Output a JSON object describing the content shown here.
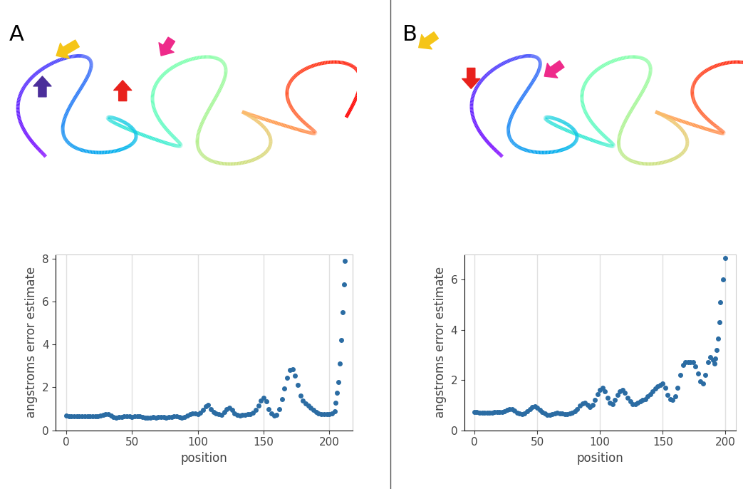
{
  "chart_data": [
    {
      "type": "scatter",
      "title": "A",
      "x_label": "position",
      "y_label": "angstroms error estimate",
      "color": "#2b6ca3",
      "marker": "circle",
      "grid": true,
      "xlim": [
        -8,
        218
      ],
      "xticks": [
        0,
        50,
        100,
        150,
        200
      ],
      "ylim": [
        0,
        8.2
      ],
      "yticks": [
        0,
        2,
        4,
        6,
        8
      ],
      "x": [
        0,
        2,
        4,
        6,
        8,
        10,
        12,
        14,
        16,
        18,
        20,
        22,
        24,
        26,
        28,
        30,
        32,
        34,
        36,
        38,
        40,
        42,
        44,
        46,
        48,
        50,
        52,
        54,
        56,
        58,
        60,
        62,
        64,
        66,
        68,
        70,
        72,
        74,
        76,
        78,
        80,
        82,
        84,
        86,
        88,
        90,
        92,
        94,
        96,
        98,
        100,
        102,
        104,
        106,
        108,
        110,
        112,
        114,
        116,
        118,
        120,
        122,
        124,
        126,
        128,
        130,
        132,
        134,
        136,
        138,
        140,
        142,
        144,
        146,
        148,
        150,
        152,
        154,
        156,
        158,
        160,
        162,
        164,
        166,
        168,
        170,
        172,
        174,
        176,
        178,
        180,
        182,
        184,
        186,
        188,
        190,
        192,
        194,
        196,
        198,
        200,
        202,
        204,
        205,
        206,
        207,
        208,
        209,
        210,
        211,
        212
      ],
      "values": [
        0.68,
        0.67,
        0.66,
        0.66,
        0.65,
        0.65,
        0.64,
        0.64,
        0.65,
        0.65,
        0.64,
        0.65,
        0.66,
        0.68,
        0.72,
        0.75,
        0.74,
        0.68,
        0.62,
        0.6,
        0.61,
        0.63,
        0.65,
        0.66,
        0.64,
        0.63,
        0.65,
        0.66,
        0.64,
        0.62,
        0.6,
        0.59,
        0.6,
        0.61,
        0.6,
        0.62,
        0.63,
        0.62,
        0.6,
        0.61,
        0.62,
        0.64,
        0.66,
        0.62,
        0.6,
        0.63,
        0.7,
        0.75,
        0.8,
        0.78,
        0.76,
        0.82,
        0.95,
        1.12,
        1.18,
        1.0,
        0.85,
        0.78,
        0.74,
        0.72,
        0.85,
        0.98,
        1.05,
        0.95,
        0.8,
        0.72,
        0.7,
        0.71,
        0.73,
        0.74,
        0.76,
        0.82,
        0.95,
        1.15,
        1.4,
        1.52,
        1.35,
        1.0,
        0.78,
        0.7,
        0.72,
        1.0,
        1.45,
        1.95,
        2.45,
        2.8,
        2.85,
        2.55,
        2.1,
        1.6,
        1.4,
        1.25,
        1.15,
        1.05,
        0.95,
        0.85,
        0.8,
        0.76,
        0.74,
        0.75,
        0.76,
        0.78,
        0.9,
        1.3,
        1.75,
        2.25,
        3.1,
        4.2,
        5.5,
        6.8,
        7.9
      ]
    },
    {
      "type": "scatter",
      "title": "B",
      "x_label": "position",
      "y_label": "angstroms error estimate",
      "color": "#2b6ca3",
      "marker": "circle",
      "grid": true,
      "xlim": [
        -8,
        208
      ],
      "xticks": [
        0,
        50,
        100,
        150,
        200
      ],
      "ylim": [
        0,
        7
      ],
      "yticks": [
        0,
        2,
        4,
        6
      ],
      "x": [
        0,
        2,
        4,
        6,
        8,
        10,
        12,
        14,
        16,
        18,
        20,
        22,
        24,
        26,
        28,
        30,
        32,
        34,
        36,
        38,
        40,
        42,
        44,
        46,
        48,
        50,
        52,
        54,
        56,
        58,
        60,
        62,
        64,
        66,
        68,
        70,
        72,
        74,
        76,
        78,
        80,
        82,
        84,
        86,
        88,
        90,
        92,
        94,
        96,
        98,
        100,
        102,
        104,
        106,
        108,
        110,
        112,
        114,
        116,
        118,
        120,
        122,
        124,
        126,
        128,
        130,
        132,
        134,
        136,
        138,
        140,
        142,
        144,
        146,
        148,
        150,
        152,
        154,
        156,
        158,
        160,
        162,
        164,
        166,
        168,
        170,
        172,
        174,
        176,
        178,
        180,
        182,
        184,
        186,
        188,
        190,
        191,
        192,
        193,
        194,
        195,
        196,
        198,
        200
      ],
      "values": [
        0.72,
        0.72,
        0.7,
        0.7,
        0.69,
        0.7,
        0.71,
        0.71,
        0.72,
        0.72,
        0.73,
        0.74,
        0.76,
        0.8,
        0.85,
        0.84,
        0.78,
        0.7,
        0.66,
        0.65,
        0.68,
        0.75,
        0.85,
        0.92,
        0.95,
        0.9,
        0.82,
        0.74,
        0.66,
        0.62,
        0.62,
        0.64,
        0.68,
        0.7,
        0.68,
        0.66,
        0.64,
        0.64,
        0.66,
        0.7,
        0.75,
        0.85,
        0.98,
        1.08,
        1.1,
        1.0,
        0.92,
        1.0,
        1.2,
        1.45,
        1.62,
        1.7,
        1.55,
        1.3,
        1.1,
        1.05,
        1.2,
        1.4,
        1.55,
        1.6,
        1.5,
        1.3,
        1.15,
        1.05,
        1.05,
        1.1,
        1.15,
        1.2,
        1.25,
        1.35,
        1.45,
        1.55,
        1.65,
        1.75,
        1.8,
        1.85,
        1.7,
        1.4,
        1.25,
        1.22,
        1.35,
        1.7,
        2.2,
        2.6,
        2.72,
        2.7,
        2.72,
        2.7,
        2.55,
        2.25,
        1.95,
        1.85,
        2.2,
        2.7,
        2.9,
        2.8,
        2.65,
        2.85,
        3.2,
        3.65,
        4.3,
        5.1,
        6.0,
        6.85
      ]
    }
  ]
}
